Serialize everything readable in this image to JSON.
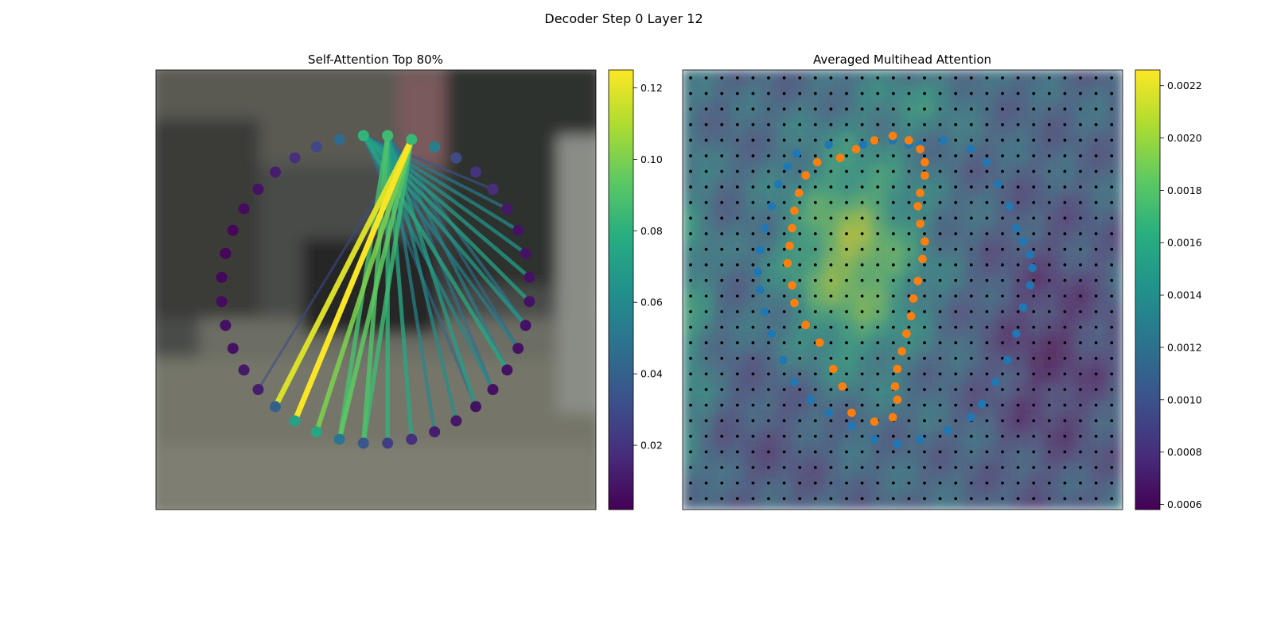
{
  "figure_title": "Decoder Step 0 Layer 12",
  "chart_data": [
    {
      "type": "network",
      "title": "Self-Attention Top 80%",
      "node_count": 40,
      "colormap": "viridis",
      "colorbar": {
        "ticks": [
          "0.02",
          "0.04",
          "0.06",
          "0.08",
          "0.10",
          "0.12"
        ],
        "vmin": 0.002,
        "vmax": 0.125
      },
      "node_values": [
        0.082,
        0.086,
        0.084,
        0.055,
        0.03,
        0.02,
        0.018,
        0.01,
        0.008,
        0.008,
        0.008,
        0.008,
        0.008,
        0.008,
        0.008,
        0.008,
        0.008,
        0.01,
        0.012,
        0.018,
        0.025,
        0.035,
        0.05,
        0.075,
        0.072,
        0.04,
        0.012,
        0.01,
        0.008,
        0.008,
        0.006,
        0.004,
        0.004,
        0.004,
        0.006,
        0.008,
        0.012,
        0.018,
        0.028,
        0.045
      ],
      "edges": [
        {
          "src": 2,
          "dst": 24,
          "w": 0.124
        },
        {
          "src": 2,
          "dst": 25,
          "w": 0.119
        },
        {
          "src": 2,
          "dst": 23,
          "w": 0.1
        },
        {
          "src": 1,
          "dst": 22,
          "w": 0.088
        },
        {
          "src": 2,
          "dst": 22,
          "w": 0.094
        },
        {
          "src": 1,
          "dst": 21,
          "w": 0.09
        },
        {
          "src": 1,
          "dst": 20,
          "w": 0.082
        },
        {
          "src": 1,
          "dst": 19,
          "w": 0.075
        },
        {
          "src": 2,
          "dst": 21,
          "w": 0.085
        },
        {
          "src": 1,
          "dst": 18,
          "w": 0.058
        },
        {
          "src": 1,
          "dst": 17,
          "w": 0.062
        },
        {
          "src": 1,
          "dst": 16,
          "w": 0.07
        },
        {
          "src": 0,
          "dst": 15,
          "w": 0.06
        },
        {
          "src": 0,
          "dst": 14,
          "w": 0.075
        },
        {
          "src": 0,
          "dst": 13,
          "w": 0.055
        },
        {
          "src": 0,
          "dst": 12,
          "w": 0.068
        },
        {
          "src": 0,
          "dst": 11,
          "w": 0.072
        },
        {
          "src": 0,
          "dst": 10,
          "w": 0.07
        },
        {
          "src": 0,
          "dst": 9,
          "w": 0.065
        },
        {
          "src": 0,
          "dst": 8,
          "w": 0.062
        },
        {
          "src": 0,
          "dst": 7,
          "w": 0.052
        },
        {
          "src": 0,
          "dst": 6,
          "w": 0.035
        },
        {
          "src": 1,
          "dst": 15,
          "w": 0.048
        },
        {
          "src": 1,
          "dst": 14,
          "w": 0.055
        },
        {
          "src": 0,
          "dst": 16,
          "w": 0.045
        },
        {
          "src": 2,
          "dst": 26,
          "w": 0.03
        },
        {
          "src": 1,
          "dst": 13,
          "w": 0.045
        },
        {
          "src": 1,
          "dst": 12,
          "w": 0.05
        }
      ]
    },
    {
      "type": "heatmap",
      "title": "Averaged Multihead Attention",
      "grid_size": 28,
      "colormap": "viridis",
      "colorbar": {
        "ticks": [
          "0.0006",
          "0.0008",
          "0.0010",
          "0.0012",
          "0.0014",
          "0.0016",
          "0.0018",
          "0.0020",
          "0.0022"
        ],
        "vmin": 0.00058,
        "vmax": 0.00226
      },
      "blue_points": [
        [
          0.5,
          0.17
        ],
        [
          0.6,
          0.16
        ],
        [
          0.72,
          0.18
        ],
        [
          0.79,
          0.21
        ],
        [
          0.84,
          0.26
        ],
        [
          0.89,
          0.31
        ],
        [
          0.92,
          0.36
        ],
        [
          0.95,
          0.39
        ],
        [
          0.98,
          0.42
        ],
        [
          0.99,
          0.45
        ],
        [
          0.98,
          0.49
        ],
        [
          0.95,
          0.54
        ],
        [
          0.92,
          0.6
        ],
        [
          0.88,
          0.66
        ],
        [
          0.83,
          0.71
        ],
        [
          0.77,
          0.76
        ],
        [
          0.72,
          0.79
        ],
        [
          0.62,
          0.82
        ],
        [
          0.5,
          0.84
        ],
        [
          0.4,
          0.85
        ],
        [
          0.3,
          0.84
        ],
        [
          0.2,
          0.81
        ],
        [
          0.1,
          0.78
        ],
        [
          0.02,
          0.75
        ],
        [
          -0.05,
          0.71
        ],
        [
          -0.1,
          0.66
        ],
        [
          -0.15,
          0.6
        ],
        [
          -0.18,
          0.55
        ],
        [
          -0.2,
          0.5
        ],
        [
          -0.21,
          0.46
        ],
        [
          -0.2,
          0.41
        ],
        [
          -0.18,
          0.36
        ],
        [
          -0.15,
          0.31
        ],
        [
          -0.12,
          0.26
        ],
        [
          -0.08,
          0.22
        ],
        [
          -0.04,
          0.19
        ],
        [
          0.1,
          0.17
        ],
        [
          0.25,
          0.17
        ],
        [
          0.38,
          0.16
        ],
        [
          0.45,
          0.17
        ]
      ],
      "orange_points": [
        [
          0.15,
          0.2
        ],
        [
          0.22,
          0.18
        ],
        [
          0.3,
          0.16
        ],
        [
          0.38,
          0.15
        ],
        [
          0.45,
          0.16
        ],
        [
          0.5,
          0.18
        ],
        [
          0.52,
          0.21
        ],
        [
          0.52,
          0.24
        ],
        [
          0.5,
          0.28
        ],
        [
          0.49,
          0.31
        ],
        [
          0.5,
          0.35
        ],
        [
          0.52,
          0.39
        ],
        [
          0.51,
          0.43
        ],
        [
          0.49,
          0.48
        ],
        [
          0.47,
          0.52
        ],
        [
          0.46,
          0.56
        ],
        [
          0.44,
          0.6
        ],
        [
          0.42,
          0.64
        ],
        [
          0.4,
          0.68
        ],
        [
          0.39,
          0.72
        ],
        [
          0.4,
          0.75
        ],
        [
          0.38,
          0.79
        ],
        [
          0.3,
          0.8
        ],
        [
          0.2,
          0.78
        ],
        [
          0.16,
          0.72
        ],
        [
          0.12,
          0.68
        ],
        [
          0.06,
          0.62
        ],
        [
          0.0,
          0.58
        ],
        [
          -0.05,
          0.53
        ],
        [
          -0.06,
          0.49
        ],
        [
          -0.08,
          0.44
        ],
        [
          -0.07,
          0.4
        ],
        [
          -0.06,
          0.36
        ],
        [
          -0.05,
          0.32
        ],
        [
          -0.03,
          0.28
        ],
        [
          0.0,
          0.24
        ],
        [
          0.05,
          0.21
        ]
      ]
    }
  ]
}
